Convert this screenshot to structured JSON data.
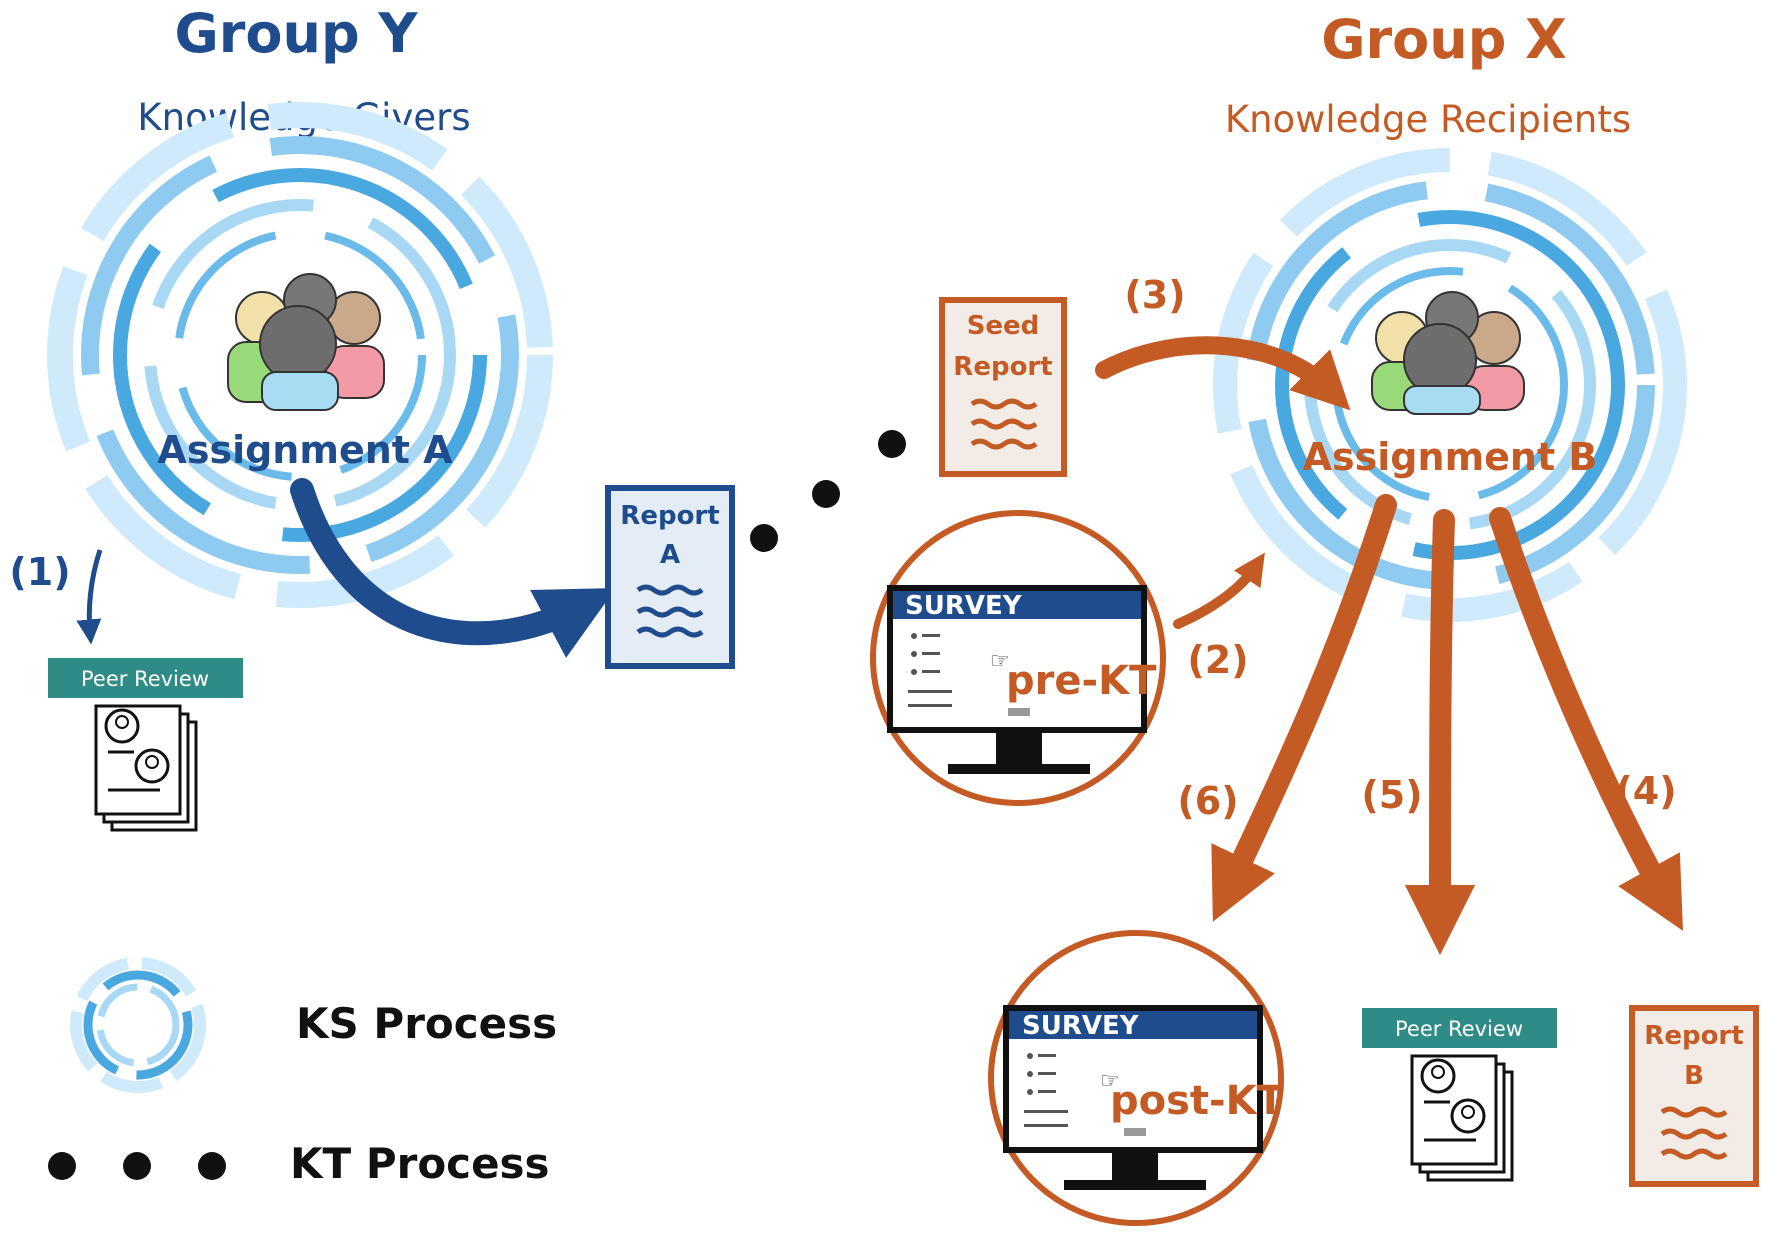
{
  "group_y": {
    "title": "Group Y",
    "subtitle": "Knowledge Givers",
    "assignment": "Assignment A",
    "color": "#1f4c8c"
  },
  "group_x": {
    "title": "Group X",
    "subtitle": "Knowledge Recipients",
    "assignment": "Assignment B",
    "color": "#c45a24"
  },
  "steps": {
    "s1": "(1)",
    "s2": "(2)",
    "s3": "(3)",
    "s4": "(4)",
    "s5": "(5)",
    "s6": "(6)"
  },
  "documents": {
    "report_a": {
      "line1": "Report",
      "line2": "A"
    },
    "seed_report": {
      "line1": "Seed",
      "line2": "Report"
    },
    "report_b": {
      "line1": "Report",
      "line2": "B"
    }
  },
  "peer_review_label": "Peer Review",
  "surveys": {
    "pre": {
      "header": "SURVEY",
      "tag": "pre-KT"
    },
    "post": {
      "header": "SURVEY",
      "tag": "post-KT"
    }
  },
  "legend": {
    "ks": "KS Process",
    "kt": "KT Process"
  },
  "colors": {
    "swirl": "#4aa8e0",
    "swirl_light": "#a9d8f5",
    "peer_banner": "#2e8b85"
  }
}
